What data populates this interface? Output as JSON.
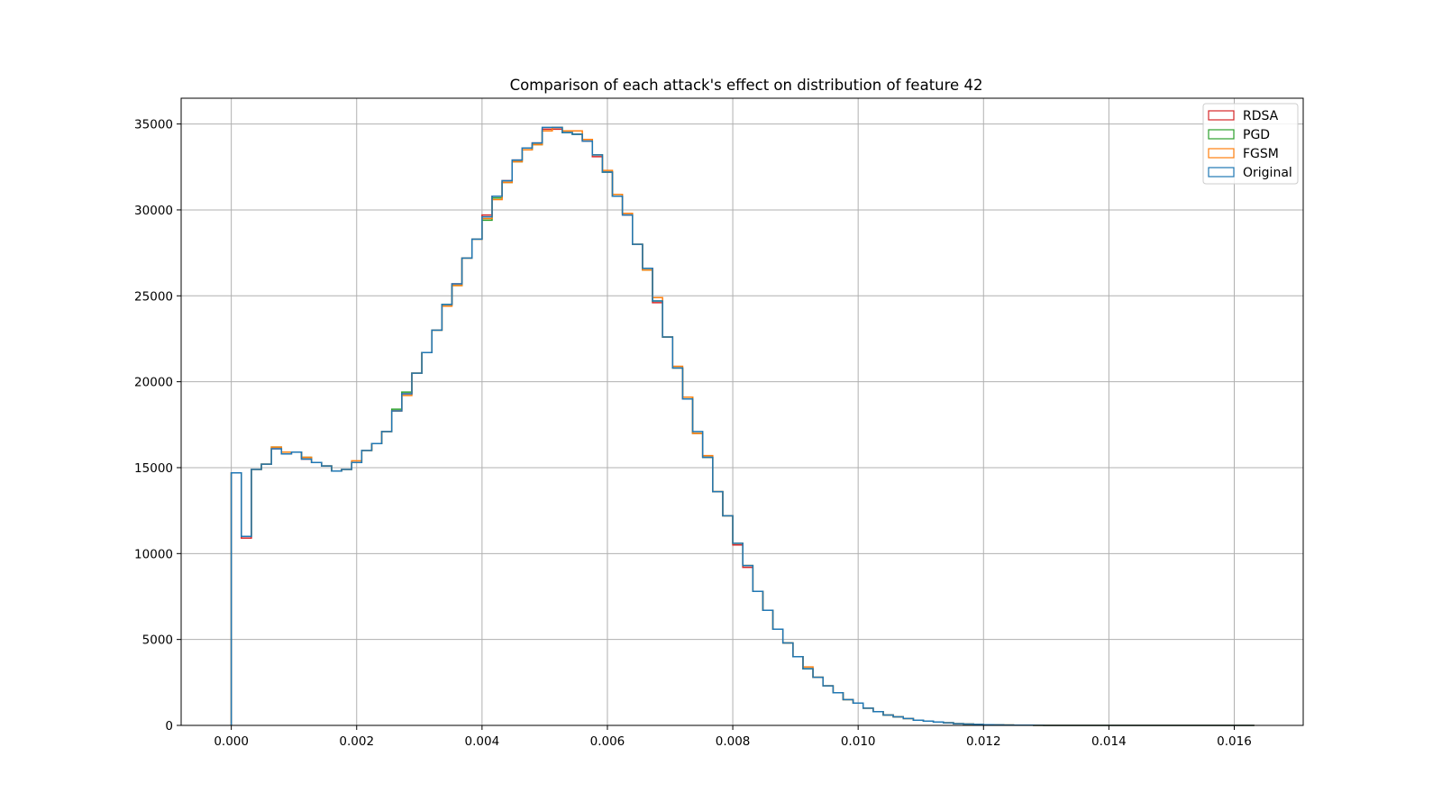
{
  "chart_data": {
    "type": "histogram",
    "title": "Comparison of each attack's effect on distribution of feature 42",
    "xlabel": "",
    "ylabel": "",
    "xlim": [
      -0.0008,
      0.0171
    ],
    "ylim": [
      0,
      36500
    ],
    "grid": true,
    "legend_position": "top-right",
    "x_ticks": [
      0.0,
      0.002,
      0.004,
      0.006,
      0.008,
      0.01,
      0.012,
      0.014,
      0.016
    ],
    "x_tick_labels": [
      "0.000",
      "0.002",
      "0.004",
      "0.006",
      "0.008",
      "0.010",
      "0.012",
      "0.014",
      "0.016"
    ],
    "y_ticks": [
      0,
      5000,
      10000,
      15000,
      20000,
      25000,
      30000,
      35000
    ],
    "y_tick_labels": [
      "0",
      "5000",
      "10000",
      "15000",
      "20000",
      "25000",
      "30000",
      "35000"
    ],
    "bin_start": 0.0,
    "bin_width": 0.00016,
    "series": [
      {
        "name": "RDSA",
        "color": "#d62728",
        "values": [
          14700,
          10900,
          14900,
          15200,
          16100,
          15800,
          15900,
          15500,
          15300,
          15100,
          14800,
          14900,
          15300,
          16000,
          16400,
          17100,
          18300,
          19300,
          20500,
          21700,
          23000,
          24500,
          25700,
          27200,
          28300,
          29700,
          30800,
          31700,
          32900,
          33600,
          33900,
          34700,
          34700,
          34500,
          34400,
          34000,
          33100,
          32200,
          30800,
          29700,
          28000,
          26600,
          24600,
          22600,
          20800,
          19000,
          17000,
          15600,
          13600,
          12200,
          10500,
          9200,
          7800,
          6700,
          5600,
          4800,
          4000,
          3300,
          2800,
          2300,
          1900,
          1500,
          1300,
          1000,
          800,
          600,
          500,
          400,
          300,
          250,
          200,
          150,
          100,
          80,
          60,
          40,
          30,
          20,
          15,
          10,
          5,
          0,
          0,
          0,
          0,
          0,
          0,
          0,
          0,
          0,
          0,
          0,
          0,
          0,
          0,
          0,
          0,
          0,
          0,
          0,
          0,
          0
        ]
      },
      {
        "name": "PGD",
        "color": "#2ca02c",
        "values": [
          14700,
          11000,
          14900,
          15200,
          16200,
          15900,
          15900,
          15600,
          15300,
          15100,
          14800,
          14900,
          15300,
          16000,
          16400,
          17100,
          18400,
          19400,
          20500,
          21700,
          23000,
          24500,
          25600,
          27200,
          28300,
          29400,
          30700,
          31600,
          32800,
          33500,
          33800,
          34600,
          34800,
          34500,
          34400,
          34100,
          33200,
          32200,
          30800,
          29800,
          28000,
          26500,
          24700,
          22600,
          20800,
          19100,
          17000,
          15600,
          13600,
          12200,
          10600,
          9300,
          7800,
          6700,
          5600,
          4800,
          4000,
          3300,
          2800,
          2300,
          1900,
          1500,
          1300,
          1000,
          800,
          600,
          500,
          400,
          300,
          250,
          200,
          150,
          100,
          80,
          60,
          40,
          30,
          20,
          15,
          10,
          5,
          0,
          0,
          0,
          0,
          0,
          0,
          0,
          0,
          0,
          0,
          0,
          0,
          0,
          0,
          0,
          0,
          0,
          0,
          0,
          0,
          0
        ]
      },
      {
        "name": "FGSM",
        "color": "#ff7f0e",
        "values": [
          14700,
          11000,
          14900,
          15200,
          16200,
          15900,
          15900,
          15600,
          15300,
          15100,
          14800,
          14900,
          15400,
          16000,
          16400,
          17100,
          18300,
          19200,
          20500,
          21700,
          23000,
          24400,
          25600,
          27200,
          28300,
          29500,
          30600,
          31600,
          32800,
          33500,
          33800,
          34600,
          34800,
          34600,
          34600,
          34100,
          33200,
          32300,
          30900,
          29800,
          28000,
          26500,
          24900,
          22600,
          20900,
          19100,
          17000,
          15700,
          13600,
          12200,
          10600,
          9300,
          7800,
          6700,
          5600,
          4800,
          4000,
          3400,
          2800,
          2300,
          1900,
          1500,
          1300,
          1000,
          800,
          600,
          500,
          400,
          300,
          250,
          200,
          150,
          100,
          80,
          60,
          40,
          30,
          20,
          15,
          10,
          5,
          0,
          0,
          0,
          0,
          0,
          0,
          0,
          0,
          0,
          0,
          0,
          0,
          0,
          0,
          0,
          0,
          0,
          0,
          0,
          0,
          0
        ]
      },
      {
        "name": "Original",
        "color": "#1f77b4",
        "values": [
          14700,
          11000,
          14900,
          15200,
          16100,
          15800,
          15900,
          15500,
          15300,
          15100,
          14800,
          14900,
          15300,
          16000,
          16400,
          17100,
          18300,
          19300,
          20500,
          21700,
          23000,
          24500,
          25700,
          27200,
          28300,
          29600,
          30800,
          31700,
          32900,
          33600,
          33900,
          34800,
          34800,
          34500,
          34400,
          34000,
          33200,
          32200,
          30800,
          29700,
          28000,
          26600,
          24700,
          22600,
          20800,
          19000,
          17100,
          15600,
          13600,
          12200,
          10600,
          9300,
          7800,
          6700,
          5600,
          4800,
          4000,
          3300,
          2800,
          2300,
          1900,
          1500,
          1300,
          1000,
          800,
          600,
          500,
          400,
          300,
          250,
          200,
          150,
          100,
          80,
          60,
          40,
          30,
          20,
          15,
          10,
          5,
          0,
          0,
          0,
          0,
          0,
          0,
          0,
          0,
          0,
          0,
          0,
          0,
          0,
          0,
          0,
          0,
          0,
          0,
          0,
          0,
          0
        ]
      }
    ]
  }
}
